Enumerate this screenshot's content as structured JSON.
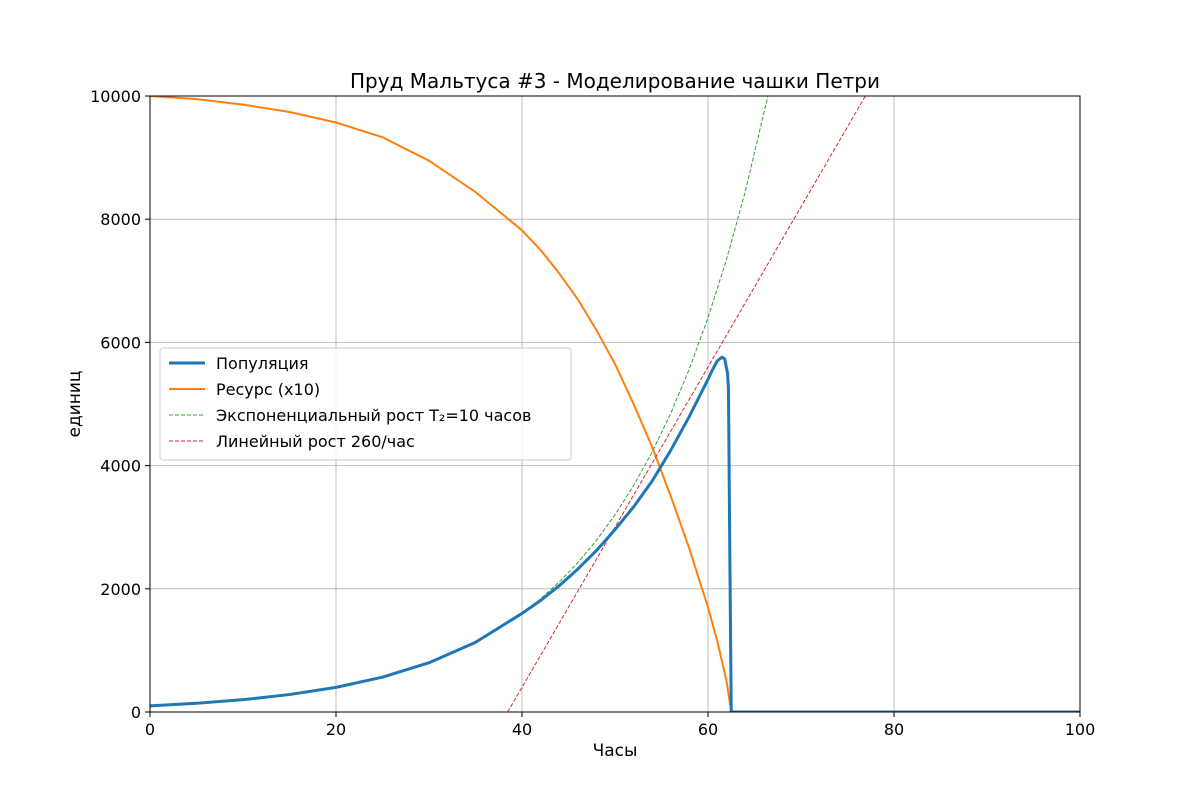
{
  "chart_data": {
    "type": "line",
    "title": "Пруд Мальтуса #3 - Моделирование чашки Петри",
    "xlabel": "Часы",
    "ylabel": "единиц",
    "xlim": [
      0,
      100
    ],
    "ylim": [
      0,
      10000
    ],
    "xticks": [
      0,
      20,
      40,
      60,
      80,
      100
    ],
    "yticks": [
      0,
      2000,
      4000,
      6000,
      8000,
      10000
    ],
    "grid": true,
    "legend_position": "center-left",
    "series": [
      {
        "name": "Популяция",
        "color": "#1f77b4",
        "style": "solid-thick",
        "x": [
          0,
          5,
          10,
          15,
          20,
          25,
          30,
          35,
          40,
          42,
          44,
          46,
          48,
          50,
          52,
          54,
          56,
          58,
          59,
          60,
          60.5,
          61,
          61.5,
          61.8,
          62.1,
          62.2,
          62.35,
          62.5,
          63,
          100
        ],
        "y": [
          100,
          141,
          200,
          283,
          400,
          566,
          800,
          1131,
          1600,
          1810,
          2050,
          2320,
          2620,
          2960,
          3330,
          3750,
          4250,
          4800,
          5100,
          5400,
          5560,
          5700,
          5760,
          5730,
          5500,
          5250,
          2500,
          0,
          0,
          0
        ]
      },
      {
        "name": "Ресурс (x10)",
        "color": "#ff7f0e",
        "style": "solid",
        "x": [
          0,
          5,
          10,
          15,
          20,
          25,
          30,
          35,
          40,
          42,
          44,
          46,
          48,
          50,
          52,
          54,
          56,
          58,
          60,
          61,
          62,
          62.5,
          63,
          100
        ],
        "y": [
          10000,
          9950,
          9860,
          9740,
          9570,
          9330,
          8950,
          8440,
          7820,
          7500,
          7120,
          6700,
          6200,
          5650,
          5000,
          4300,
          3500,
          2650,
          1700,
          1150,
          500,
          0,
          0,
          0
        ]
      },
      {
        "name": "Экспоненциальный рост T₂=10 часов",
        "color": "#2ca02c",
        "style": "dashed",
        "x": [
          0,
          5,
          10,
          15,
          20,
          25,
          30,
          35,
          40,
          42,
          44,
          46,
          48,
          50,
          52,
          54,
          56,
          58,
          60,
          62,
          64,
          66.44
        ],
        "y": [
          100,
          141,
          200,
          283,
          400,
          566,
          800,
          1131,
          1600,
          1838,
          2111,
          2425,
          2786,
          3200,
          3676,
          4222,
          4850,
          5572,
          6400,
          7352,
          8445,
          10000
        ]
      },
      {
        "name": "Линейный рост 260/час",
        "color": "#d62728",
        "style": "dashed",
        "x": [
          38.46,
          77.0
        ],
        "y": [
          0,
          10020
        ]
      }
    ]
  }
}
